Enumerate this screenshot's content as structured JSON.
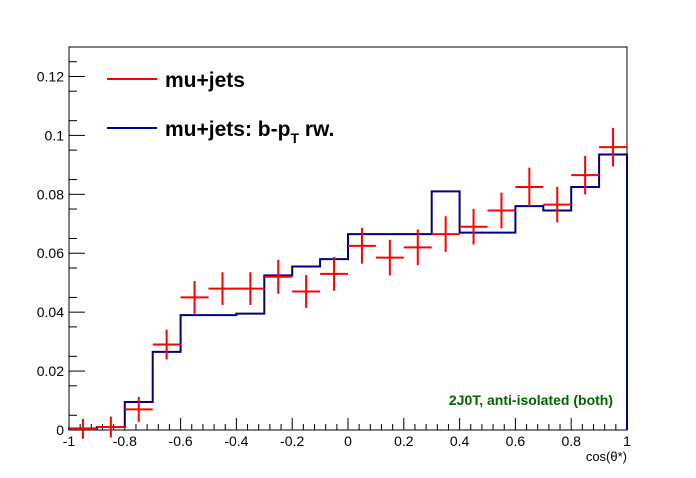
{
  "chart_data": {
    "type": "line",
    "title": "",
    "xlabel": "cos(θ*)",
    "ylabel": "",
    "xlim": [
      -1,
      1
    ],
    "ylim": [
      0,
      0.13
    ],
    "x_ticks": [
      -1,
      -0.8,
      -0.6,
      -0.4,
      -0.2,
      0,
      0.2,
      0.4,
      0.6,
      0.8,
      1
    ],
    "x_tick_labels": [
      "-1",
      "-0.8",
      "-0.6",
      "-0.4",
      "-0.2",
      "0",
      "0.2",
      "0.4",
      "0.6",
      "0.8",
      "1"
    ],
    "y_ticks": [
      0,
      0.02,
      0.04,
      0.06,
      0.08,
      0.1,
      0.12
    ],
    "y_tick_labels": [
      "0",
      "0.02",
      "0.04",
      "0.06",
      "0.08",
      "0.1",
      "0.12"
    ],
    "grid": false,
    "legend_position": "top-left",
    "bin_edges": [
      -1,
      -0.9,
      -0.8,
      -0.7,
      -0.6,
      -0.5,
      -0.4,
      -0.3,
      -0.2,
      -0.1,
      0,
      0.1,
      0.2,
      0.3,
      0.4,
      0.5,
      0.6,
      0.7,
      0.8,
      0.9,
      1
    ],
    "series": [
      {
        "name": "mu+jets",
        "style": "markers",
        "color": "#ff0000",
        "x": [
          -0.95,
          -0.85,
          -0.75,
          -0.65,
          -0.55,
          -0.45,
          -0.35,
          -0.25,
          -0.15,
          -0.05,
          0.05,
          0.15,
          0.25,
          0.35,
          0.45,
          0.55,
          0.65,
          0.75,
          0.85,
          0.95
        ],
        "values": [
          0.0004,
          0.001,
          0.007,
          0.029,
          0.045,
          0.048,
          0.048,
          0.052,
          0.047,
          0.053,
          0.0625,
          0.0585,
          0.062,
          0.0665,
          0.069,
          0.0745,
          0.0825,
          0.0765,
          0.0865,
          0.096
        ],
        "errors": [
          0.0003,
          0.0005,
          0.0012,
          0.002,
          0.0025,
          0.0025,
          0.0025,
          0.0027,
          0.0025,
          0.0027,
          0.003,
          0.003,
          0.003,
          0.003,
          0.003,
          0.003,
          0.0035,
          0.003,
          0.0035,
          0.0035
        ]
      },
      {
        "name": "mu+jets: b-p_T rw.",
        "style": "histogram",
        "color": "#000080",
        "values": [
          0.0005,
          0.001,
          0.0095,
          0.0265,
          0.039,
          0.039,
          0.0395,
          0.0525,
          0.0555,
          0.058,
          0.0665,
          0.0665,
          0.0665,
          0.081,
          0.067,
          0.067,
          0.076,
          0.0745,
          0.0825,
          0.0935
        ]
      }
    ],
    "legend": {
      "entries": [
        {
          "text": "mu+jets"
        },
        {
          "text_main": "mu+jets: b-p",
          "text_sub": "T",
          "text_tail": " rw."
        }
      ]
    },
    "annotation": {
      "text": "2J0T, anti-isolated (both)",
      "color": "#006400"
    }
  }
}
